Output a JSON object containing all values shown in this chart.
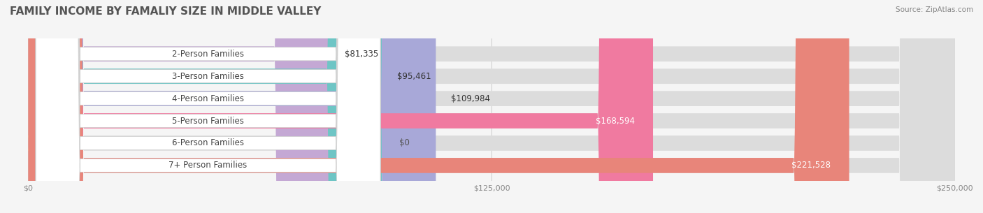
{
  "title": "FAMILY INCOME BY FAMALIY SIZE IN MIDDLE VALLEY",
  "source": "Source: ZipAtlas.com",
  "categories": [
    "2-Person Families",
    "3-Person Families",
    "4-Person Families",
    "5-Person Families",
    "6-Person Families",
    "7+ Person Families"
  ],
  "values": [
    81335,
    95461,
    109984,
    168594,
    0,
    221528
  ],
  "bar_colors": [
    "#c4a8d4",
    "#6ec5c5",
    "#a8a8d8",
    "#f07aa0",
    "#f5c89a",
    "#e8857a"
  ],
  "label_colors": [
    "#555555",
    "#555555",
    "#555555",
    "#ffffff",
    "#555555",
    "#ffffff"
  ],
  "max_value": 250000,
  "xlabel_ticks": [
    0,
    125000,
    250000
  ],
  "xlabel_labels": [
    "$0",
    "$125,000",
    "$250,000"
  ],
  "bg_color": "#f5f5f5",
  "bar_bg_color": "#e8e8e8",
  "title_fontsize": 11,
  "label_fontsize": 8.5,
  "value_fontsize": 8.5
}
